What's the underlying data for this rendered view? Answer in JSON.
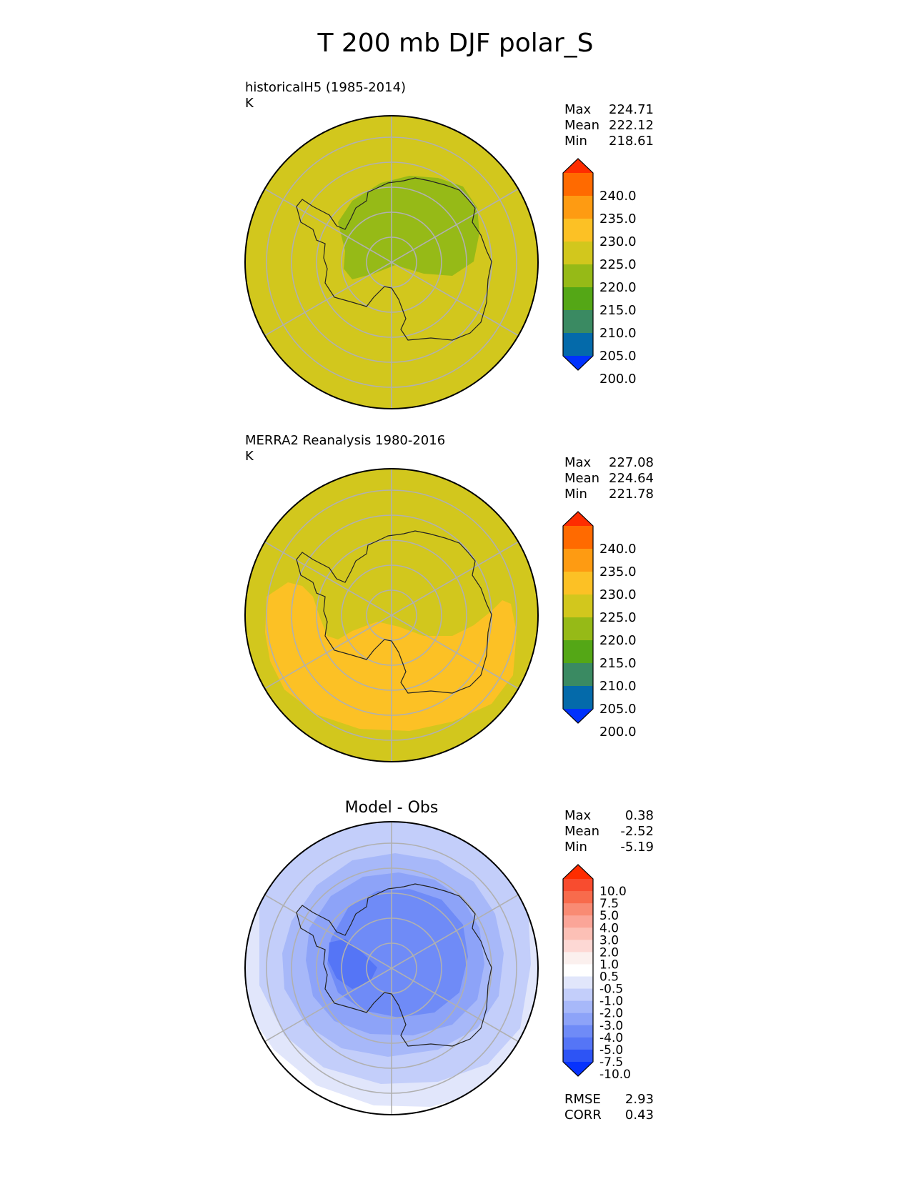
{
  "title": "T 200 mb DJF polar_S",
  "panels": [
    {
      "id": "test",
      "title_line1": "historicalH5 (1985-2014)",
      "title_line2": "K",
      "stats": {
        "max_label": "Max",
        "max": "224.71",
        "mean_label": "Mean",
        "mean": "222.12",
        "min_label": "Min",
        "min": "218.61"
      }
    },
    {
      "id": "reference",
      "title_line1": "MERRA2 Reanalysis 1980-2016",
      "title_line2": "K",
      "stats": {
        "max_label": "Max",
        "max": "227.08",
        "mean_label": "Mean",
        "mean": "224.64",
        "min_label": "Min",
        "min": "221.78"
      }
    },
    {
      "id": "diff",
      "title": "Model - Obs",
      "stats": {
        "max_label": "Max",
        "max": "0.38",
        "mean_label": "Mean",
        "mean": "-2.52",
        "min_label": "Min",
        "min": "-5.19"
      },
      "metrics": {
        "rmse_label": "RMSE",
        "rmse": "2.93",
        "corr_label": "CORR",
        "corr": "0.43"
      }
    }
  ],
  "chart_data": [
    {
      "type": "heatmap",
      "projection": "south polar stereographic",
      "units": "K",
      "colorbar": {
        "ticks": [
          "240.0",
          "235.0",
          "230.0",
          "225.0",
          "220.0",
          "215.0",
          "210.0",
          "205.0",
          "200.0"
        ],
        "colors": [
          "#fe2d00",
          "#ff6a00",
          "#fe9b12",
          "#fcc125",
          "#d2c71d",
          "#96ba17",
          "#54a716",
          "#3a8a62",
          "#046aaa",
          "#0032fd"
        ],
        "extend": "both"
      },
      "regions": [
        {
          "label": "220.0-225.0",
          "color": "#d2c71d"
        },
        {
          "label": "215.0-220.0",
          "color": "#96ba17"
        }
      ]
    },
    {
      "type": "heatmap",
      "projection": "south polar stereographic",
      "units": "K",
      "colorbar": {
        "ticks": [
          "240.0",
          "235.0",
          "230.0",
          "225.0",
          "220.0",
          "215.0",
          "210.0",
          "205.0",
          "200.0"
        ],
        "colors": [
          "#fe2d00",
          "#ff6a00",
          "#fe9b12",
          "#fcc125",
          "#d2c71d",
          "#96ba17",
          "#54a716",
          "#3a8a62",
          "#046aaa",
          "#0032fd"
        ],
        "extend": "both"
      },
      "regions": [
        {
          "label": "220.0-225.0",
          "color": "#d2c71d"
        },
        {
          "label": "225.0-230.0",
          "color": "#fcc125"
        }
      ]
    },
    {
      "type": "heatmap",
      "projection": "south polar stereographic",
      "colorbar": {
        "ticks": [
          "10.0",
          "7.5",
          "5.0",
          "4.0",
          "3.0",
          "2.0",
          "1.0",
          "0.5",
          "-0.5",
          "-1.0",
          "-2.0",
          "-3.0",
          "-4.0",
          "-5.0",
          "-7.5",
          "-10.0"
        ],
        "colors": [
          "#fe2d00",
          "#f84c2f",
          "#f86b4c",
          "#f98b74",
          "#fba598",
          "#fcc0b6",
          "#fdd8d4",
          "#fbf0ee",
          "#ffffff",
          "#e1e6fb",
          "#c3cefa",
          "#a7b8f9",
          "#8da3f8",
          "#6f8bf7",
          "#5575f6",
          "#2d54f5",
          "#0632fd"
        ],
        "extend": "both"
      },
      "regions": [
        {
          "label": "-0.5-0.5",
          "color": "#ffffff"
        },
        {
          "label": "-1.0--0.5",
          "color": "#e1e6fb"
        },
        {
          "label": "-2.0--1.0",
          "color": "#c3cefa"
        },
        {
          "label": "-3.0--2.0",
          "color": "#a7b8f9"
        },
        {
          "label": "-4.0--3.0",
          "color": "#8da3f8"
        },
        {
          "label": "-5.0--4.0",
          "color": "#6f8bf7"
        },
        {
          "label": "-7.5--5.0",
          "color": "#5575f6"
        }
      ]
    }
  ]
}
